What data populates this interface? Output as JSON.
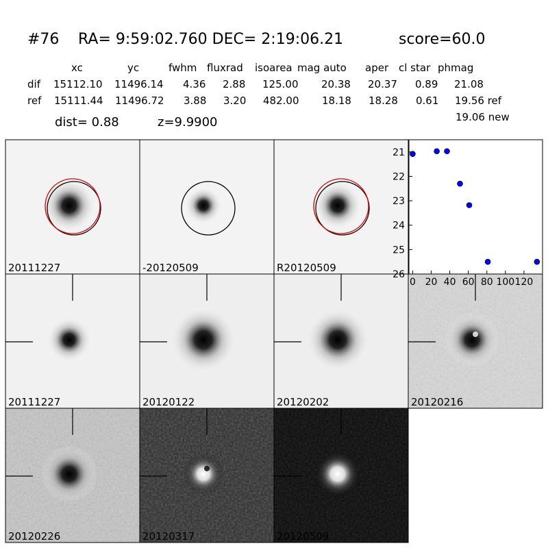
{
  "header": {
    "id": "#76",
    "coords": "RA= 9:59:02.760 DEC= 2:19:06.21",
    "score": "score=60.0"
  },
  "table": {
    "columns": [
      "xc",
      "yc",
      "fwhm",
      "fluxrad",
      "isoarea",
      "mag auto",
      "aper",
      "cl star",
      "phmag"
    ],
    "rows": [
      [
        "dif",
        "15112.10",
        "11496.14",
        "4.36",
        "2.88",
        "125.00",
        "20.38",
        "20.37",
        "0.89",
        "21.08"
      ],
      [
        "ref",
        "15111.44",
        "11496.72",
        "3.88",
        "3.20",
        "482.00",
        "18.18",
        "18.28",
        "0.61",
        "19.56 ref"
      ]
    ],
    "note": "19.06 new"
  },
  "dist": "dist=  0.88",
  "z": "z=9.9900",
  "stamps": [
    {
      "label": "20111227"
    },
    {
      "label": "-20120509"
    },
    {
      "label": "R20120509"
    },
    {
      "label": "20111227",
      "label_color": "#ff0000"
    },
    {
      "label": "20120122"
    },
    {
      "label": "20120202"
    },
    {
      "label": "20120216"
    },
    {
      "label": "20120226"
    },
    {
      "label": "20120317"
    },
    {
      "label": "20120509"
    }
  ],
  "chart_data": {
    "type": "scatter",
    "x": [
      0,
      26,
      37,
      51,
      61,
      81,
      134
    ],
    "values": [
      21.08,
      20.97,
      20.97,
      22.3,
      23.18,
      25.5,
      25.5
    ],
    "color": "#0000ff",
    "xlim": [
      -4,
      140
    ],
    "ylim": [
      26,
      20.5
    ],
    "xticks": [
      0,
      20,
      40,
      60,
      80,
      100,
      120
    ],
    "yticks": [
      21,
      22,
      23,
      24,
      25,
      26
    ]
  }
}
